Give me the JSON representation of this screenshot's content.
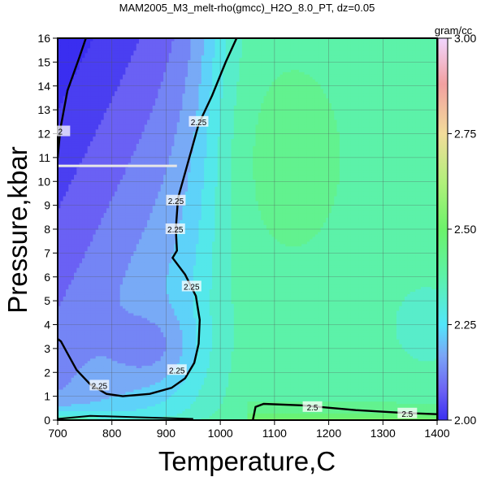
{
  "chart_data": {
    "type": "heatmap",
    "title": "MAM2005_M3_melt-rho(gmcc)_H2O_8.0_PT, dz=0.05",
    "xlabel": "Temperature,C",
    "ylabel": "Pressure,kbar",
    "xlim": [
      700,
      1400
    ],
    "ylim": [
      0,
      16
    ],
    "x_ticks": [
      "700",
      "800",
      "900",
      "1000",
      "1100",
      "1200",
      "1300",
      "1400"
    ],
    "y_ticks": [
      "0",
      "1",
      "2",
      "3",
      "4",
      "5",
      "6",
      "7",
      "8",
      "9",
      "10",
      "11",
      "12",
      "13",
      "14",
      "15",
      "16"
    ],
    "grid": true,
    "colorbar": {
      "label": "gram/cc",
      "range": [
        2.0,
        3.0
      ],
      "ticks": [
        "2.00",
        "2.25",
        "2.50",
        "2.75",
        "3.00"
      ],
      "stops": [
        {
          "v": 2.0,
          "c": "#3a2ef0"
        },
        {
          "v": 2.08,
          "c": "#6d64f4"
        },
        {
          "v": 2.17,
          "c": "#7aa6f6"
        },
        {
          "v": 2.25,
          "c": "#52e6fa"
        },
        {
          "v": 2.38,
          "c": "#5cf2a6"
        },
        {
          "v": 2.5,
          "c": "#6cf26a"
        },
        {
          "v": 2.62,
          "c": "#b0f07a"
        },
        {
          "v": 2.75,
          "c": "#f2dc9a"
        },
        {
          "v": 2.88,
          "c": "#f2a0a0"
        },
        {
          "v": 3.0,
          "c": "#f1d6ff"
        }
      ]
    },
    "contour_labels": [
      {
        "text": "2",
        "t": 705,
        "p": 12.1
      },
      {
        "text": "2.25",
        "t": 960,
        "p": 12.5
      },
      {
        "text": "2.25",
        "t": 918,
        "p": 9.2
      },
      {
        "text": "2.25",
        "t": 917,
        "p": 8.0
      },
      {
        "text": "2.25",
        "t": 947,
        "p": 5.6
      },
      {
        "text": "2.25",
        "t": 920,
        "p": 2.1
      },
      {
        "text": "2.25",
        "t": 777,
        "p": 1.45
      },
      {
        "text": "2.5",
        "t": 1170,
        "p": 0.55
      },
      {
        "text": "2.5",
        "t": 1345,
        "p": 0.28
      }
    ],
    "annotation_line": {
      "t": [
        700,
        920
      ],
      "p": [
        10.65,
        10.65
      ],
      "color": "#e6e6e6"
    }
  }
}
